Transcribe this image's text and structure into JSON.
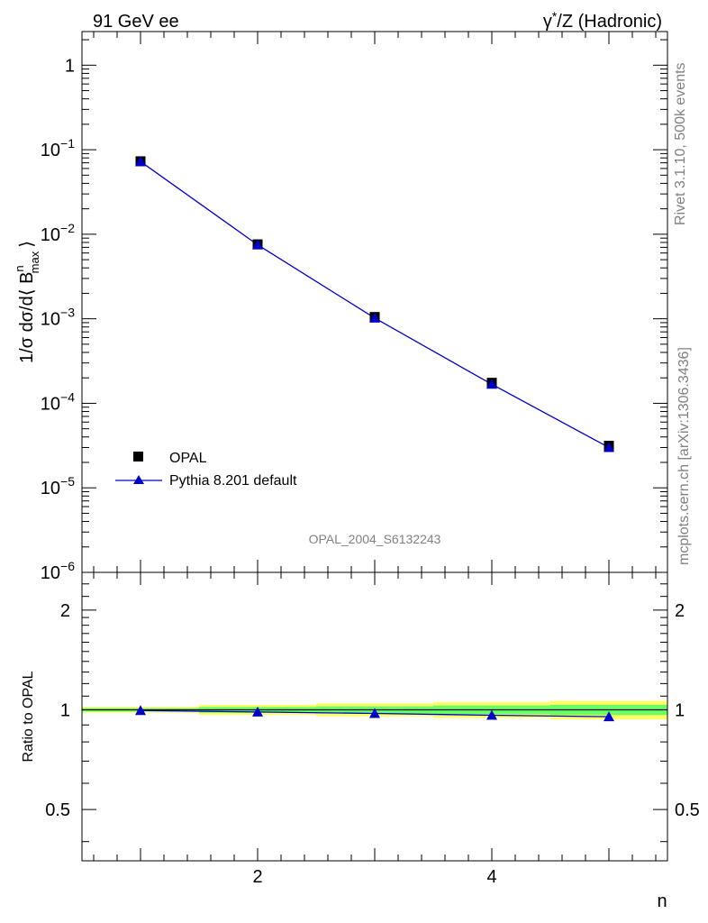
{
  "header": {
    "left": "91 GeV ee",
    "right_gamma": "γ",
    "right_star": "*",
    "right_rest": "/Z (Hadronic)"
  },
  "side_text": {
    "rivet": "Rivet 3.1.10,  500k events",
    "mcplots": "mcplots.cern.ch [arXiv:1306.3436]"
  },
  "analysis_id": "OPAL_2004_S6132243",
  "ylabel_main": {
    "prefix": "1/σ dσ/d⟨ B",
    "sup": "n",
    "sub": "max",
    "suffix": "⟩"
  },
  "ylabel_ratio": "Ratio to OPAL",
  "xlabel": "n",
  "legend": [
    {
      "label": "OPAL",
      "marker": "square",
      "color": "#000000"
    },
    {
      "label": "Pythia 8.201 default",
      "marker": "triangle",
      "color": "#0000cc"
    }
  ],
  "main_ticks": [
    {
      "base": "1",
      "exp": ""
    },
    {
      "base": "10",
      "exp": "−1"
    },
    {
      "base": "10",
      "exp": "−2"
    },
    {
      "base": "10",
      "exp": "−3"
    },
    {
      "base": "10",
      "exp": "−4"
    },
    {
      "base": "10",
      "exp": "−5"
    },
    {
      "base": "10",
      "exp": "−6"
    }
  ],
  "ratio_ticks": [
    "2",
    "1",
    "0.5"
  ],
  "x_ticks": [
    "2",
    "4"
  ],
  "chart_data": [
    {
      "type": "scatter",
      "panel": "main",
      "yscale": "log",
      "xlim": [
        0.5,
        5.5
      ],
      "ylim": [
        1e-06,
        2.5
      ],
      "x": [
        1,
        2,
        3,
        4,
        5
      ],
      "series": [
        {
          "name": "OPAL",
          "values": [
            0.073,
            0.0076,
            0.00105,
            0.000175,
            3.15e-05
          ]
        },
        {
          "name": "Pythia 8.201 default",
          "values": [
            0.0725,
            0.0075,
            0.00102,
            0.000168,
            3e-05
          ]
        }
      ]
    },
    {
      "type": "line",
      "panel": "ratio",
      "yscale": "log",
      "xlim": [
        0.5,
        5.5
      ],
      "ylim": [
        0.35,
        2.6
      ],
      "x": [
        1,
        2,
        3,
        4,
        5
      ],
      "band_x_edges": [
        0.5,
        1.5,
        2.5,
        3.5,
        4.5,
        5.5
      ],
      "band_inner": [
        0.012,
        0.02,
        0.025,
        0.03,
        0.035
      ],
      "band_outer": [
        0.02,
        0.035,
        0.045,
        0.055,
        0.065
      ],
      "series": [
        {
          "name": "Pythia 8.201 default",
          "values": [
            0.995,
            0.985,
            0.975,
            0.963,
            0.953
          ]
        }
      ]
    }
  ],
  "colors": {
    "mc": "#0000cc",
    "data": "#000000",
    "band_inner": "#66ff66",
    "band_outer": "#ffff66",
    "muted": "#808080"
  }
}
